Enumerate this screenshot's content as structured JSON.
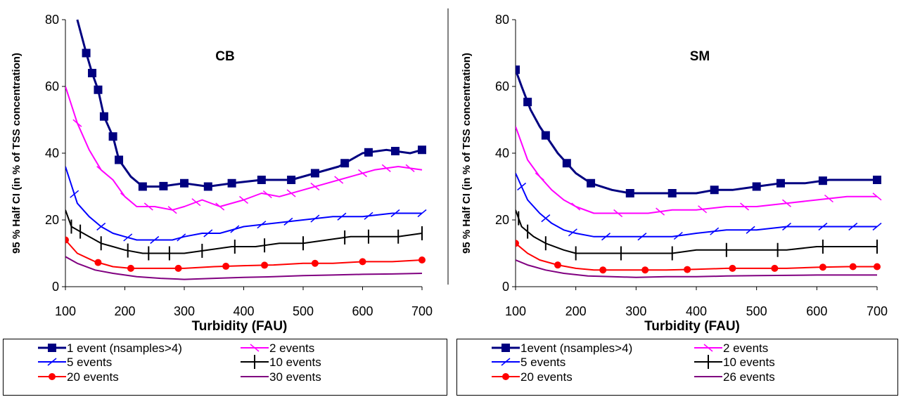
{
  "chart_data": [
    {
      "type": "line",
      "title": "CB",
      "xlabel": "Turbidity (FAU)",
      "ylabel": "95 % Half CI (in % of TSS concentration)",
      "xlim": [
        100,
        700
      ],
      "ylim": [
        0,
        80
      ],
      "xticks": [
        "100",
        "200",
        "300",
        "400",
        "500",
        "600",
        "700"
      ],
      "yticks": [
        "0",
        "20",
        "40",
        "60",
        "80"
      ],
      "grid": false,
      "legend_position": "bottom",
      "series": [
        {
          "name": "1 event (nsamples>4)",
          "color": "#000080",
          "marker": "square",
          "x": [
            120,
            135,
            145,
            155,
            165,
            180,
            190,
            210,
            230,
            260,
            300,
            340,
            380,
            430,
            480,
            520,
            560,
            600,
            640,
            680,
            700
          ],
          "y": [
            80,
            70,
            64,
            59,
            51,
            45,
            38,
            33,
            30,
            30,
            31,
            30,
            31,
            32,
            32,
            34,
            36,
            40,
            41,
            40,
            41
          ],
          "marker_x": [
            135,
            145,
            155,
            165,
            180,
            190,
            230,
            265,
            300,
            340,
            380,
            430,
            480,
            520,
            570,
            610,
            655,
            700
          ]
        },
        {
          "name": "2 events",
          "color": "#ff00ff",
          "marker": "cross",
          "x": [
            100,
            120,
            140,
            160,
            180,
            200,
            220,
            250,
            280,
            300,
            330,
            360,
            400,
            430,
            460,
            500,
            540,
            580,
            620,
            660,
            700
          ],
          "y": [
            60,
            49,
            41,
            35,
            32,
            27,
            24,
            24,
            23,
            24,
            26,
            24,
            26,
            28,
            27,
            29,
            31,
            33,
            35,
            36,
            35
          ],
          "marker_x": [
            120,
            160,
            200,
            240,
            280,
            320,
            360,
            400,
            440,
            480,
            520,
            560,
            600,
            640,
            680
          ]
        },
        {
          "name": "5 events",
          "color": "#0000ff",
          "marker": "dash",
          "x": [
            100,
            120,
            140,
            160,
            180,
            200,
            220,
            250,
            280,
            300,
            330,
            360,
            400,
            450,
            500,
            550,
            600,
            650,
            700
          ],
          "y": [
            36,
            25,
            21,
            18,
            16,
            15,
            14,
            14,
            14,
            15,
            16,
            16,
            18,
            19,
            20,
            21,
            21,
            22,
            22
          ],
          "marker_x": [
            115,
            160,
            205,
            250,
            295,
            340,
            385,
            430,
            475,
            520,
            565,
            610,
            655,
            700
          ]
        },
        {
          "name": "10 events",
          "color": "#000000",
          "marker": "bar",
          "x": [
            100,
            110,
            130,
            160,
            180,
            200,
            230,
            260,
            300,
            340,
            380,
            420,
            460,
            500,
            540,
            580,
            620,
            660,
            700
          ],
          "y": [
            23,
            18,
            16,
            13,
            12,
            11,
            10,
            10,
            10,
            11,
            12,
            12,
            13,
            13,
            14,
            15,
            15,
            15,
            16
          ],
          "marker_x": [
            110,
            125,
            160,
            205,
            240,
            275,
            330,
            385,
            435,
            500,
            570,
            610,
            660,
            700
          ]
        },
        {
          "name": "20 events",
          "color": "#ff0000",
          "marker": "circle",
          "x": [
            100,
            120,
            150,
            180,
            210,
            250,
            300,
            350,
            400,
            450,
            500,
            550,
            600,
            650,
            700
          ],
          "y": [
            14,
            10,
            7.5,
            6,
            5.5,
            5.5,
            5.5,
            6,
            6.3,
            6.5,
            7,
            7,
            7.5,
            7.5,
            8
          ],
          "marker_x": [
            100,
            155,
            210,
            290,
            370,
            435,
            520,
            600,
            700
          ]
        },
        {
          "name": "30 events",
          "color": "#800080",
          "marker": "none",
          "x": [
            100,
            120,
            150,
            180,
            220,
            260,
            300,
            350,
            400,
            450,
            500,
            550,
            600,
            650,
            700
          ],
          "y": [
            9,
            7,
            5,
            4,
            3,
            2.5,
            2.2,
            2.5,
            2.8,
            3,
            3.3,
            3.5,
            3.7,
            3.8,
            4
          ],
          "marker_x": []
        }
      ]
    },
    {
      "type": "line",
      "title": "SM",
      "xlabel": "Turbidity (FAU)",
      "ylabel": "95 % Half CI (in % of TSS concentration)",
      "xlim": [
        100,
        700
      ],
      "ylim": [
        0,
        80
      ],
      "xticks": [
        "100",
        "200",
        "300",
        "400",
        "500",
        "600",
        "700"
      ],
      "yticks": [
        "0",
        "20",
        "40",
        "60",
        "80"
      ],
      "grid": false,
      "legend_position": "bottom",
      "series": [
        {
          "name": "1event (nsamples>4)",
          "color": "#000080",
          "marker": "square",
          "x": [
            100,
            110,
            125,
            140,
            155,
            170,
            185,
            200,
            225,
            260,
            290,
            320,
            360,
            400,
            430,
            460,
            500,
            540,
            580,
            620,
            660,
            700
          ],
          "y": [
            65,
            60,
            53,
            48,
            44,
            40,
            37,
            34,
            31,
            29,
            28,
            28,
            28,
            28,
            29,
            29,
            30,
            31,
            31,
            32,
            32,
            32
          ],
          "marker_x": [
            100,
            120,
            150,
            185,
            225,
            290,
            360,
            430,
            500,
            540,
            610,
            700
          ]
        },
        {
          "name": "2 events",
          "color": "#ff00ff",
          "marker": "cross",
          "x": [
            100,
            120,
            140,
            160,
            180,
            200,
            230,
            260,
            290,
            320,
            360,
            400,
            450,
            500,
            550,
            600,
            650,
            700
          ],
          "y": [
            48,
            38,
            33,
            29,
            26,
            24,
            22,
            22,
            22,
            22,
            23,
            23,
            24,
            24,
            25,
            26,
            27,
            27
          ],
          "marker_x": [
            140,
            200,
            270,
            340,
            410,
            480,
            550,
            620,
            700
          ]
        },
        {
          "name": "5 events",
          "color": "#0000ff",
          "marker": "dash",
          "x": [
            100,
            120,
            140,
            160,
            180,
            200,
            230,
            260,
            290,
            320,
            360,
            400,
            450,
            500,
            550,
            600,
            650,
            700
          ],
          "y": [
            34,
            26,
            22,
            19,
            17,
            16,
            15,
            15,
            15,
            15,
            15,
            16,
            17,
            17,
            18,
            18,
            18,
            18
          ],
          "marker_x": [
            110,
            150,
            195,
            250,
            310,
            370,
            430,
            490,
            550,
            610,
            660,
            700
          ]
        },
        {
          "name": "10 events",
          "color": "#000000",
          "marker": "bar",
          "x": [
            100,
            110,
            130,
            150,
            180,
            200,
            230,
            260,
            290,
            320,
            360,
            400,
            450,
            500,
            550,
            600,
            650,
            700
          ],
          "y": [
            23,
            18,
            15,
            13,
            11,
            10,
            10,
            10,
            10,
            10,
            10,
            11,
            11,
            11,
            11,
            12,
            12,
            12
          ],
          "marker_x": [
            105,
            120,
            150,
            200,
            275,
            360,
            450,
            535,
            610,
            700
          ]
        },
        {
          "name": "20 events",
          "color": "#ff0000",
          "marker": "circle",
          "x": [
            100,
            120,
            140,
            170,
            200,
            230,
            260,
            300,
            350,
            400,
            450,
            500,
            550,
            600,
            650,
            700
          ],
          "y": [
            13,
            10,
            8,
            6.5,
            5.5,
            5,
            5,
            5,
            5,
            5.2,
            5.5,
            5.5,
            5.5,
            5.8,
            6,
            6
          ],
          "marker_x": [
            100,
            170,
            245,
            315,
            385,
            460,
            530,
            610,
            660,
            700
          ]
        },
        {
          "name": "26 events",
          "color": "#800080",
          "marker": "none",
          "x": [
            100,
            120,
            150,
            180,
            220,
            260,
            300,
            350,
            400,
            450,
            500,
            550,
            600,
            650,
            700
          ],
          "y": [
            8,
            6.5,
            5,
            4,
            3.2,
            3,
            2.8,
            3,
            3,
            3.2,
            3.3,
            3.4,
            3.5,
            3.5,
            3.5
          ],
          "marker_x": []
        }
      ]
    }
  ]
}
